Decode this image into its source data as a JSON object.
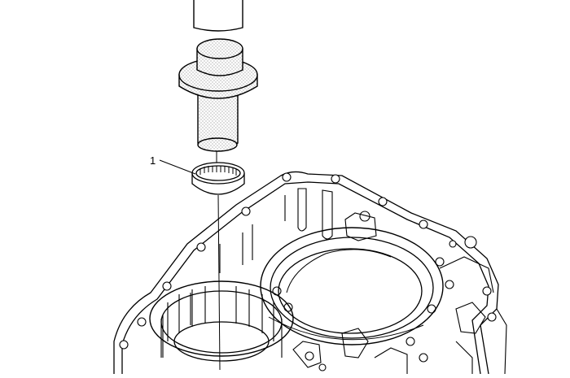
{
  "diagram": {
    "callouts": [
      {
        "label": "1",
        "target": "needle-bearing"
      }
    ],
    "colors": {
      "line": "#000000",
      "background": "#ffffff",
      "stipple": "#9a9a9a"
    },
    "parts": [
      "installer-handle",
      "bearing-installer-tool",
      "needle-bearing",
      "transmission-case-housing"
    ]
  }
}
